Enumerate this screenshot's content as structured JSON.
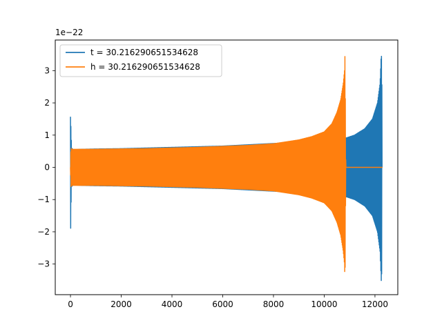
{
  "chart_data": {
    "type": "line",
    "title": "",
    "xlabel": "",
    "ylabel": "",
    "xlim": [
      -600,
      12900
    ],
    "ylim": [
      -3.95,
      3.95
    ],
    "y_scale_label": "1e−22",
    "x_ticks": [
      0,
      2000,
      4000,
      6000,
      8000,
      10000,
      12000
    ],
    "x_tick_labels": [
      "0",
      "2000",
      "4000",
      "6000",
      "8000",
      "10000",
      "12000"
    ],
    "y_ticks": [
      -3,
      -2,
      -1,
      0,
      1,
      2,
      3
    ],
    "y_tick_labels": [
      "−3",
      "−2",
      "−1",
      "0",
      "1",
      "2",
      "3"
    ],
    "grid": false,
    "legend_position": "top-left",
    "series": [
      {
        "name": "t = 30.216290651534628",
        "color": "#1f77b4",
        "envelope": {
          "x": [
            0,
            20,
            40,
            100,
            200,
            400,
            1000,
            2000,
            4000,
            6000,
            8000,
            9000,
            10000,
            10500,
            10800,
            10900,
            11200,
            11600,
            11900,
            12100,
            12200,
            12250,
            12270,
            12280,
            12300
          ],
          "upper": [
            1.57,
            1.2,
            0.6,
            0.55,
            0.55,
            0.56,
            0.57,
            0.58,
            0.62,
            0.66,
            0.74,
            0.78,
            0.85,
            0.88,
            0.9,
            0.92,
            1.0,
            1.2,
            1.5,
            2.0,
            2.6,
            3.55,
            3.2,
            0.0,
            0.0
          ],
          "lower": [
            -2.35,
            -1.2,
            -0.6,
            -0.55,
            -0.55,
            -0.56,
            -0.57,
            -0.58,
            -0.62,
            -0.66,
            -0.74,
            -0.78,
            -0.85,
            -0.88,
            -0.9,
            -0.92,
            -1.0,
            -1.2,
            -1.5,
            -2.0,
            -2.6,
            -3.55,
            -3.2,
            0.0,
            0.0
          ]
        }
      },
      {
        "name": "h = 30.216290651534628",
        "color": "#ff7f0e",
        "envelope": {
          "x": [
            0,
            20,
            60,
            100,
            500,
            1000,
            2000,
            3000,
            4000,
            5000,
            6000,
            7000,
            8000,
            9000,
            9500,
            10000,
            10300,
            10500,
            10650,
            10750,
            10800,
            10820,
            10850,
            10900,
            12300
          ],
          "upper": [
            0.0,
            0.6,
            0.55,
            0.56,
            0.56,
            0.56,
            0.57,
            0.58,
            0.6,
            0.62,
            0.65,
            0.68,
            0.73,
            0.85,
            0.95,
            1.1,
            1.35,
            1.7,
            2.1,
            2.6,
            3.0,
            3.55,
            0.0,
            0.0,
            0.0
          ],
          "lower": [
            0.0,
            -0.6,
            -0.55,
            -0.56,
            -0.56,
            -0.56,
            -0.57,
            -0.58,
            -0.6,
            -0.62,
            -0.65,
            -0.68,
            -0.73,
            -0.85,
            -0.95,
            -1.1,
            -1.35,
            -1.7,
            -2.1,
            -2.6,
            -3.0,
            -3.58,
            0.0,
            0.0,
            0.0
          ]
        }
      }
    ]
  }
}
